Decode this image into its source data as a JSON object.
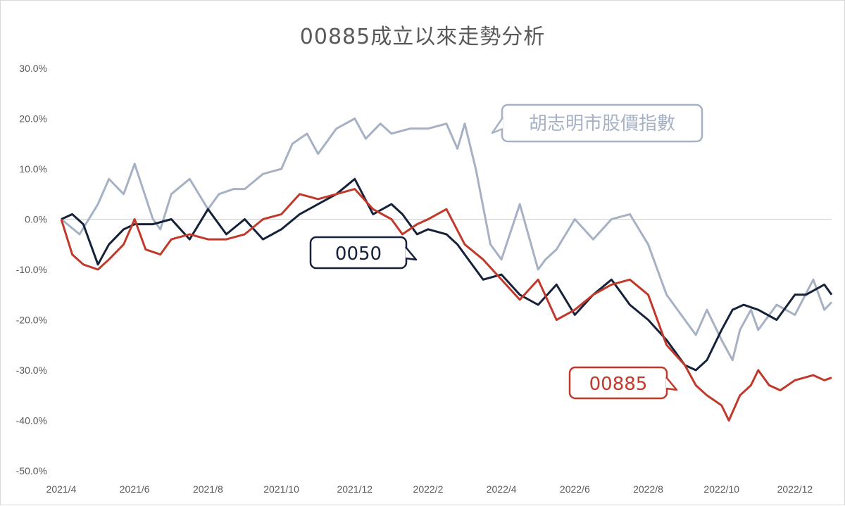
{
  "chart_data": {
    "type": "line",
    "title": "00885成立以來走勢分析",
    "xlabel": "",
    "ylabel": "",
    "x_tick_labels": [
      "2021/4",
      "2021/6",
      "2021/8",
      "2021/10",
      "2021/12",
      "2022/2",
      "2022/4",
      "2022/6",
      "2022/8",
      "2022/10",
      "2022/12"
    ],
    "x_ticks_month_index": [
      0,
      2,
      4,
      6,
      8,
      10,
      12,
      14,
      16,
      18,
      20
    ],
    "y_tick_labels": [
      "30.0%",
      "20.0%",
      "10.0%",
      "0.0%",
      "-10.0%",
      "-20.0%",
      "-30.0%",
      "-40.0%",
      "-50.0%"
    ],
    "ylim": [
      -50,
      30
    ],
    "xlim_month_index": [
      0,
      21
    ],
    "grid": false,
    "legend": "callout labels on lines",
    "series": [
      {
        "name": "胡志明市股價指數",
        "color": "#a6b1c4",
        "x": [
          0,
          0.5,
          1,
          1.3,
          1.7,
          2,
          2.5,
          2.7,
          3,
          3.5,
          4,
          4.3,
          4.7,
          5,
          5.5,
          6,
          6.3,
          6.7,
          7,
          7.5,
          8,
          8.3,
          8.7,
          9,
          9.5,
          10,
          10.5,
          10.8,
          11,
          11.3,
          11.7,
          12,
          12.5,
          13,
          13.2,
          13.5,
          14,
          14.5,
          15,
          15.5,
          16,
          16.5,
          17,
          17.3,
          17.6,
          18,
          18.3,
          18.5,
          18.8,
          19,
          19.5,
          20,
          20.5,
          20.8,
          21
        ],
        "y": [
          0,
          -3,
          3,
          8,
          5,
          11,
          0,
          -2,
          5,
          8,
          2,
          5,
          6,
          6,
          9,
          10,
          15,
          17,
          13,
          18,
          20,
          16,
          19,
          17,
          18,
          18,
          19,
          14,
          19,
          10,
          -5,
          -8,
          3,
          -10,
          -8,
          -6,
          0,
          -4,
          0,
          1,
          -5,
          -15,
          -20,
          -23,
          -18,
          -24,
          -28,
          -22,
          -18,
          -22,
          -17,
          -19,
          -12,
          -18,
          -16.5
        ]
      },
      {
        "name": "0050",
        "color": "#16213a",
        "x": [
          0,
          0.3,
          0.6,
          1,
          1.3,
          1.7,
          2,
          2.5,
          3,
          3.5,
          4,
          4.5,
          5,
          5.5,
          6,
          6.5,
          7,
          7.5,
          8,
          8.5,
          9,
          9.3,
          9.7,
          10,
          10.5,
          10.8,
          11,
          11.5,
          12,
          12.5,
          13,
          13.5,
          14,
          14.5,
          15,
          15.5,
          16,
          16.5,
          17,
          17.3,
          17.6,
          18,
          18.3,
          18.6,
          19,
          19.5,
          20,
          20.3,
          20.8,
          21
        ],
        "y": [
          0,
          1,
          -1,
          -9,
          -5,
          -2,
          -1,
          -1,
          0,
          -4,
          2,
          -3,
          0,
          -4,
          -2,
          1,
          3,
          5,
          8,
          1,
          3,
          1,
          -3,
          -2,
          -3,
          -5,
          -7,
          -12,
          -11,
          -15,
          -17,
          -13,
          -19,
          -15,
          -12,
          -17,
          -20,
          -24,
          -29,
          -30,
          -28,
          -22,
          -18,
          -17,
          -18,
          -20,
          -15,
          -15,
          -13,
          -15
        ]
      },
      {
        "name": "00885",
        "color": "#c0392b",
        "x": [
          0,
          0.3,
          0.6,
          1,
          1.3,
          1.7,
          2,
          2.3,
          2.7,
          3,
          3.5,
          4,
          4.5,
          5,
          5.5,
          6,
          6.5,
          7,
          7.5,
          8,
          8.5,
          9,
          9.3,
          9.7,
          10,
          10.5,
          11,
          11.5,
          12,
          12.5,
          13,
          13.5,
          14,
          14.5,
          15,
          15.5,
          16,
          16.5,
          17,
          17.3,
          17.6,
          18,
          18.2,
          18.5,
          18.8,
          19,
          19.3,
          19.6,
          20,
          20.5,
          20.8,
          21
        ],
        "y": [
          0,
          -7,
          -9,
          -10,
          -8,
          -5,
          0,
          -6,
          -7,
          -4,
          -3,
          -4,
          -4,
          -3,
          0,
          1,
          5,
          4,
          5,
          6,
          2,
          0,
          -3,
          -1,
          0,
          2,
          -5,
          -8,
          -12,
          -16,
          -12,
          -20,
          -18,
          -15,
          -13,
          -12,
          -15,
          -25,
          -29,
          -33,
          -35,
          -37,
          -40,
          -35,
          -33,
          -30,
          -33,
          -34,
          -32,
          -31,
          -32,
          -31.5
        ]
      }
    ],
    "callouts": [
      {
        "series": "胡志明市股價指數",
        "text": "胡志明市股價指數"
      },
      {
        "series": "0050",
        "text": "0050"
      },
      {
        "series": "00885",
        "text": "00885"
      }
    ]
  }
}
